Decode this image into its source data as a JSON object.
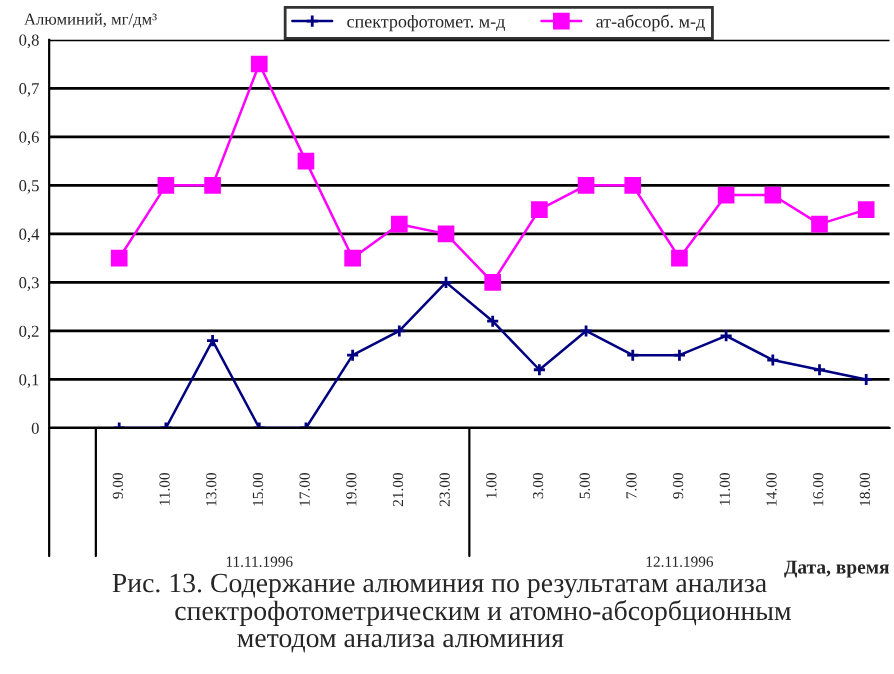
{
  "chart_data": {
    "type": "line",
    "ylabel": "Алюминий, мг/дм³",
    "xlabel": "Дата, время",
    "categories": [
      null,
      "9.00",
      "11.00",
      "13.00",
      "15.00",
      "17.00",
      "19.00",
      "21.00",
      "23.00",
      "1.00",
      "3.00",
      "5.00",
      "7.00",
      "9.00",
      "11.00",
      "14.00",
      "16.00",
      "18.00"
    ],
    "series": [
      {
        "name": "спектрофотомет. м-д",
        "color": "#000080",
        "marker": "cross",
        "values": [
          null,
          0,
          0,
          0.18,
          0,
          0,
          0.15,
          0.2,
          0.3,
          0.22,
          0.12,
          0.2,
          0.15,
          0.15,
          0.19,
          0.14,
          0.12,
          0.1
        ]
      },
      {
        "name": "ат-абсорб. м-д",
        "color": "#ff00ff",
        "marker": "square",
        "values": [
          null,
          0.35,
          0.5,
          0.5,
          0.75,
          0.55,
          0.35,
          0.42,
          0.4,
          0.3,
          0.45,
          0.5,
          0.5,
          0.35,
          0.48,
          0.48,
          0.42,
          0.45
        ]
      }
    ],
    "ylim": [
      0,
      0.8
    ],
    "yticks": [
      {
        "value": 0,
        "label": "0"
      },
      {
        "value": 0.1,
        "label": "0,1"
      },
      {
        "value": 0.2,
        "label": "0,2"
      },
      {
        "value": 0.3,
        "label": "0,3"
      },
      {
        "value": 0.4,
        "label": "0,4"
      },
      {
        "value": 0.5,
        "label": "0,5"
      },
      {
        "value": 0.6,
        "label": "0,6"
      },
      {
        "value": 0.7,
        "label": "0,7"
      },
      {
        "value": 0.8,
        "label": "0,8"
      }
    ],
    "grid": "y",
    "legend": "top right",
    "annotations": [
      "11.11.1996",
      "12.11.1996",
      "Рис. 13. Содержание алюминия по результатам анализа\n         спектрофотометрическим и атомно-абсорбционным\n                  методом анализа алюминия"
    ]
  }
}
